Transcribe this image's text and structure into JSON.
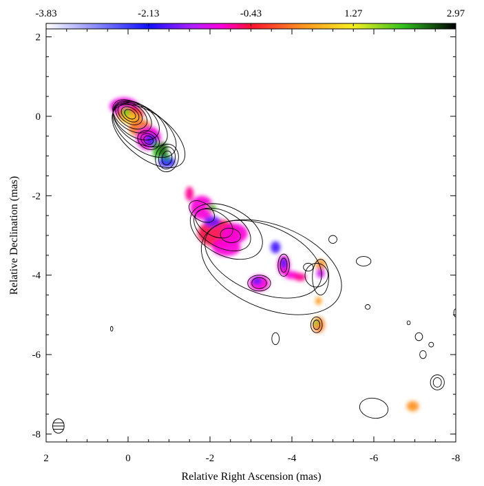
{
  "chart_data": {
    "type": "heatmap",
    "title": "",
    "xlabel": "Relative Right Ascension (mas)",
    "ylabel": "Relative Declination (mas)",
    "xlim": [
      2,
      -8
    ],
    "ylim": [
      -8.2,
      2.2
    ],
    "x_ticks": [
      2,
      0,
      -2,
      -4,
      -6,
      -8
    ],
    "x_tick_labels": [
      "2",
      "0",
      "-2",
      "-4",
      "-6",
      "-8"
    ],
    "y_ticks": [
      2,
      0,
      -2,
      -4,
      -6,
      -8
    ],
    "y_tick_labels": [
      "2",
      "0",
      "-2",
      "-4",
      "-6",
      "-8"
    ],
    "colorbar": {
      "min": -3.83,
      "max": 2.97,
      "tick_values": [
        -3.83,
        -2.13,
        -0.43,
        1.27,
        2.97
      ],
      "tick_labels": [
        "-3.83",
        "-2.13",
        "-0.43",
        "1.27",
        "2.97"
      ],
      "stops": [
        {
          "value": -3.83,
          "color": "#ffffff"
        },
        {
          "value": -2.13,
          "color": "#1010ff"
        },
        {
          "value": -1.4,
          "color": "#b020ff"
        },
        {
          "value": -0.9,
          "color": "#ff00d8"
        },
        {
          "value": -0.43,
          "color": "#ff1030"
        },
        {
          "value": 0.4,
          "color": "#ff9020"
        },
        {
          "value": 1.27,
          "color": "#f8f020"
        },
        {
          "value": 2.1,
          "color": "#30c020"
        },
        {
          "value": 2.97,
          "color": "#000000"
        }
      ]
    },
    "spectral_index_blobs": [
      {
        "ra": 0.1,
        "dec": 0.25,
        "rx": 0.35,
        "ry": 0.22,
        "value": -1.0
      },
      {
        "ra": -0.05,
        "dec": 0.05,
        "rx": 0.33,
        "ry": 0.2,
        "value": -0.43
      },
      {
        "ra": -0.05,
        "dec": -0.05,
        "rx": 0.25,
        "ry": 0.14,
        "value": 0.9
      },
      {
        "ra": 0.05,
        "dec": 0.1,
        "rx": 0.12,
        "ry": 0.1,
        "value": 1.8
      },
      {
        "ra": -0.3,
        "dec": -0.3,
        "rx": 0.28,
        "ry": 0.22,
        "value": 0.2
      },
      {
        "ra": -0.5,
        "dec": -0.55,
        "rx": 0.3,
        "ry": 0.3,
        "value": -1.0
      },
      {
        "ra": -0.55,
        "dec": -0.6,
        "rx": 0.15,
        "ry": 0.15,
        "value": -1.8
      },
      {
        "ra": -0.7,
        "dec": -0.85,
        "rx": 0.1,
        "ry": 0.22,
        "value": 2.1
      },
      {
        "ra": -0.85,
        "dec": -0.85,
        "rx": 0.12,
        "ry": 0.2,
        "value": 2.5
      },
      {
        "ra": -0.95,
        "dec": -1.15,
        "rx": 0.2,
        "ry": 0.13,
        "value": -2.0
      },
      {
        "ra": -0.95,
        "dec": -1.05,
        "rx": 0.08,
        "ry": 0.08,
        "value": 2.3
      },
      {
        "ra": -1.5,
        "dec": -1.95,
        "rx": 0.1,
        "ry": 0.18,
        "value": -0.7
      },
      {
        "ra": -1.8,
        "dec": -2.3,
        "rx": 0.28,
        "ry": 0.3,
        "value": -0.9
      },
      {
        "ra": -2.2,
        "dec": -2.95,
        "rx": 0.5,
        "ry": 0.35,
        "value": -0.5
      },
      {
        "ra": -2.6,
        "dec": -2.95,
        "rx": 0.32,
        "ry": 0.25,
        "value": -0.9
      },
      {
        "ra": -2.4,
        "dec": -3.3,
        "rx": 0.35,
        "ry": 0.22,
        "value": -0.9
      },
      {
        "ra": -2.05,
        "dec": -2.65,
        "rx": 0.2,
        "ry": 0.14,
        "value": -1.7
      },
      {
        "ra": -2.05,
        "dec": -2.3,
        "rx": 0.1,
        "ry": 0.08,
        "value": 2.0
      },
      {
        "ra": -3.2,
        "dec": -4.2,
        "rx": 0.25,
        "ry": 0.2,
        "value": -0.9
      },
      {
        "ra": -3.15,
        "dec": -4.15,
        "rx": 0.12,
        "ry": 0.1,
        "value": -1.8
      },
      {
        "ra": -3.6,
        "dec": -3.3,
        "rx": 0.12,
        "ry": 0.15,
        "value": -1.9
      },
      {
        "ra": -3.8,
        "dec": -3.75,
        "rx": 0.15,
        "ry": 0.25,
        "value": -0.9
      },
      {
        "ra": -3.8,
        "dec": -3.7,
        "rx": 0.08,
        "ry": 0.14,
        "value": -2.0
      },
      {
        "ra": -4.0,
        "dec": -4.0,
        "rx": 0.18,
        "ry": 0.1,
        "value": -0.9
      },
      {
        "ra": -4.2,
        "dec": -4.05,
        "rx": 0.15,
        "ry": 0.1,
        "value": -0.7
      },
      {
        "ra": -4.7,
        "dec": -3.75,
        "rx": 0.12,
        "ry": 0.15,
        "value": 0.4
      },
      {
        "ra": -4.7,
        "dec": -3.95,
        "rx": 0.1,
        "ry": 0.12,
        "value": -1.2
      },
      {
        "ra": -4.65,
        "dec": -4.65,
        "rx": 0.08,
        "ry": 0.1,
        "value": 0.5
      },
      {
        "ra": -4.65,
        "dec": -5.25,
        "rx": 0.15,
        "ry": 0.2,
        "value": 0.3
      },
      {
        "ra": -4.6,
        "dec": -5.2,
        "rx": 0.05,
        "ry": 0.09,
        "value": 1.8
      },
      {
        "ra": -6.95,
        "dec": -7.3,
        "rx": 0.15,
        "ry": 0.13,
        "value": 0.4
      }
    ],
    "contours": [
      {
        "ra": -0.05,
        "dec": 0.05,
        "rx": 0.15,
        "ry": 0.1,
        "angle": 35
      },
      {
        "ra": -0.05,
        "dec": 0.05,
        "rx": 0.24,
        "ry": 0.16,
        "angle": 35
      },
      {
        "ra": -0.05,
        "dec": 0.05,
        "rx": 0.33,
        "ry": 0.22,
        "angle": 35
      },
      {
        "ra": -0.08,
        "dec": 0.02,
        "rx": 0.43,
        "ry": 0.28,
        "angle": 35
      },
      {
        "ra": -0.1,
        "dec": 0.0,
        "rx": 0.53,
        "ry": 0.34,
        "angle": 35
      },
      {
        "ra": -0.2,
        "dec": -0.1,
        "rx": 0.63,
        "ry": 0.4,
        "angle": 35
      },
      {
        "ra": -0.3,
        "dec": -0.2,
        "rx": 0.75,
        "ry": 0.44,
        "angle": 35
      },
      {
        "ra": -0.4,
        "dec": -0.35,
        "rx": 0.9,
        "ry": 0.5,
        "angle": 37
      },
      {
        "ra": -0.5,
        "dec": -0.5,
        "rx": 1.05,
        "ry": 0.55,
        "angle": 38
      },
      {
        "ra": -0.5,
        "dec": -0.6,
        "rx": 0.12,
        "ry": 0.1,
        "angle": 30
      },
      {
        "ra": -0.5,
        "dec": -0.6,
        "rx": 0.2,
        "ry": 0.15,
        "angle": 30
      },
      {
        "ra": -0.5,
        "dec": -0.6,
        "rx": 0.28,
        "ry": 0.22,
        "angle": 30
      },
      {
        "ra": -0.95,
        "dec": -1.05,
        "rx": 0.12,
        "ry": 0.18,
        "angle": 10
      },
      {
        "ra": -0.95,
        "dec": -1.05,
        "rx": 0.2,
        "ry": 0.28,
        "angle": 10
      },
      {
        "ra": -0.95,
        "dec": -1.05,
        "rx": 0.28,
        "ry": 0.35,
        "angle": 10
      },
      {
        "ra": -1.8,
        "dec": -2.4,
        "rx": 0.35,
        "ry": 0.22,
        "angle": 35
      },
      {
        "ra": -2.1,
        "dec": -2.7,
        "rx": 0.5,
        "ry": 0.3,
        "angle": 30
      },
      {
        "ra": -2.3,
        "dec": -2.85,
        "rx": 0.75,
        "ry": 0.45,
        "angle": 28
      },
      {
        "ra": -2.4,
        "dec": -2.9,
        "rx": 0.95,
        "ry": 0.6,
        "angle": 28
      },
      {
        "ra": -2.5,
        "dec": -3.0,
        "rx": 0.25,
        "ry": 0.18,
        "angle": 10
      },
      {
        "ra": -3.3,
        "dec": -3.6,
        "rx": 1.5,
        "ry": 0.85,
        "angle": 22
      },
      {
        "ra": -3.5,
        "dec": -3.8,
        "rx": 1.8,
        "ry": 1.05,
        "angle": 22
      },
      {
        "ra": -3.2,
        "dec": -4.2,
        "rx": 0.18,
        "ry": 0.14,
        "angle": 0
      },
      {
        "ra": -3.2,
        "dec": -4.2,
        "rx": 0.28,
        "ry": 0.2,
        "angle": 0
      },
      {
        "ra": -3.8,
        "dec": -3.75,
        "rx": 0.08,
        "ry": 0.18,
        "angle": 0
      },
      {
        "ra": -3.8,
        "dec": -3.75,
        "rx": 0.14,
        "ry": 0.28,
        "angle": 0
      },
      {
        "ra": -4.4,
        "dec": -3.8,
        "rx": 0.12,
        "ry": 0.1,
        "angle": 0
      },
      {
        "ra": -4.6,
        "dec": -4.0,
        "rx": 0.28,
        "ry": 0.3,
        "angle": 10
      },
      {
        "ra": -4.7,
        "dec": -4.05,
        "rx": 0.2,
        "ry": 0.45,
        "angle": 0
      },
      {
        "ra": -4.6,
        "dec": -5.25,
        "rx": 0.08,
        "ry": 0.12,
        "angle": 0
      },
      {
        "ra": -4.6,
        "dec": -5.25,
        "rx": 0.14,
        "ry": 0.2,
        "angle": 0
      },
      {
        "ra": -5.0,
        "dec": -3.1,
        "rx": 0.1,
        "ry": 0.1,
        "angle": 0
      },
      {
        "ra": -5.75,
        "dec": -3.65,
        "rx": 0.18,
        "ry": 0.12,
        "angle": 0
      },
      {
        "ra": -3.6,
        "dec": -5.6,
        "rx": 0.09,
        "ry": 0.15,
        "angle": 0
      },
      {
        "ra": -6.0,
        "dec": -7.35,
        "rx": 0.35,
        "ry": 0.25,
        "angle": 10
      },
      {
        "ra": -7.55,
        "dec": -6.7,
        "rx": 0.1,
        "ry": 0.12,
        "angle": 0
      },
      {
        "ra": -7.55,
        "dec": -6.7,
        "rx": 0.17,
        "ry": 0.19,
        "angle": 0
      },
      {
        "ra": -7.1,
        "dec": -5.55,
        "rx": 0.09,
        "ry": 0.1,
        "angle": 0
      },
      {
        "ra": -7.2,
        "dec": -6.0,
        "rx": 0.08,
        "ry": 0.1,
        "angle": 0
      },
      {
        "ra": -7.4,
        "dec": -5.75,
        "rx": 0.06,
        "ry": 0.06,
        "angle": 0
      },
      {
        "ra": -6.85,
        "dec": -5.2,
        "rx": 0.04,
        "ry": 0.05,
        "angle": 0
      },
      {
        "ra": -8.0,
        "dec": -4.95,
        "rx": 0.05,
        "ry": 0.1,
        "angle": 0
      },
      {
        "ra": 0.4,
        "dec": -5.35,
        "rx": 0.03,
        "ry": 0.06,
        "angle": 0
      },
      {
        "ra": -5.85,
        "dec": -4.8,
        "rx": 0.06,
        "ry": 0.06,
        "angle": 0
      }
    ],
    "beam": {
      "ra": 1.7,
      "dec": -7.8,
      "rx": 0.14,
      "ry": 0.18
    }
  }
}
